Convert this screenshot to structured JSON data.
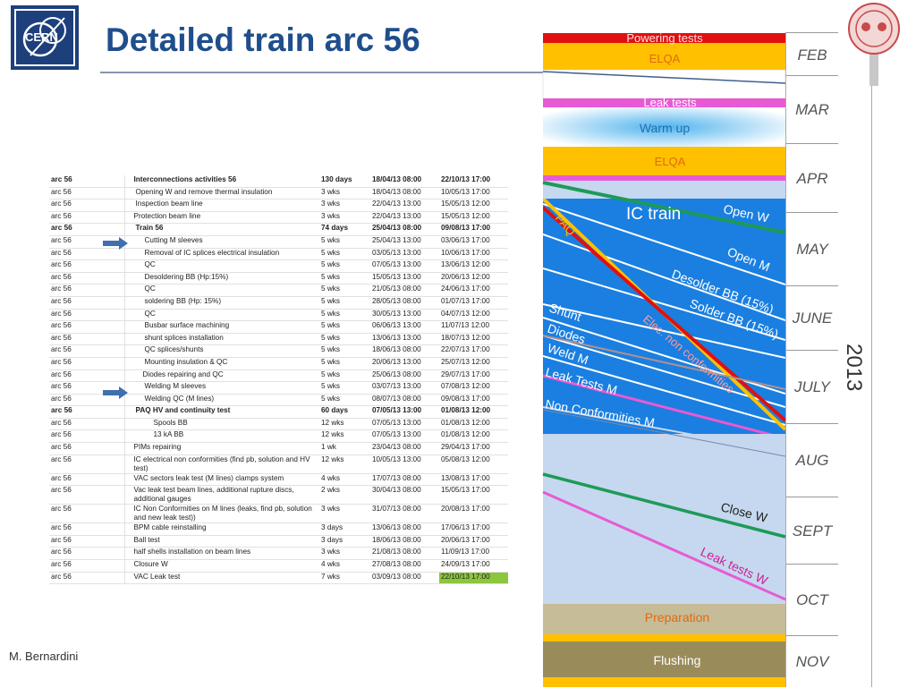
{
  "title": "Detailed train arc 56",
  "author": "M. Bernardini",
  "logo_text": "CERN",
  "year": "2013",
  "months": [
    "FEB",
    "MAR",
    "APR",
    "MAY",
    "JUNE",
    "JULY",
    "AUG",
    "SEPT",
    "OCT",
    "NOV"
  ],
  "bands": {
    "powering": "Powering tests",
    "elqa1": "ELQA",
    "leak": "Leak tests",
    "warm": "Warm up",
    "elqa2": "ELQA",
    "prep": "Preparation",
    "flush": "Flushing"
  },
  "train_labels": {
    "ic_train": "IC train",
    "open_w": "Open W",
    "paq": "PAQ",
    "open_m": "Open M",
    "desolder": "Desolder BB (15%)",
    "solder": "Solder BB (15%)",
    "shunt": "Shunt",
    "diodes": "Diodes",
    "elec": "Elec. non conformities",
    "weld_m": "Weld M",
    "leak_m": "Leak Tests M",
    "nonconf_m": "Non Conformities M",
    "close_w": "Close W",
    "leak_w": "Leak tests W"
  },
  "table": [
    [
      "arc 56",
      "Interconnections activities 56",
      "130 days",
      "18/04/13 08:00",
      "22/10/13 17:00"
    ],
    [
      "arc 56",
      "Opening W and remove thermal insulation",
      "3 wks",
      "18/04/13 08:00",
      "10/05/13 17:00"
    ],
    [
      "arc 56",
      "Inspection beam line",
      "3 wks",
      "22/04/13 13:00",
      "15/05/13 12:00"
    ],
    [
      "arc 56",
      "Protection beam line",
      "3 wks",
      "22/04/13 13:00",
      "15/05/13 12:00"
    ],
    [
      "arc 56",
      "Train 56",
      "74 days",
      "25/04/13 08:00",
      "09/08/13 17:00"
    ],
    [
      "arc 56",
      "Cutting M sleeves",
      "5 wks",
      "25/04/13 13:00",
      "03/06/13 17:00"
    ],
    [
      "arc 56",
      "Removal of IC splices electrical insulation",
      "5 wks",
      "03/05/13 13:00",
      "10/06/13 17:00"
    ],
    [
      "arc 56",
      "QC",
      "5 wks",
      "07/05/13 13:00",
      "13/06/13 12:00"
    ],
    [
      "arc 56",
      "Desoldering BB (Hp:15%)",
      "5 wks",
      "15/05/13 13:00",
      "20/06/13 12:00"
    ],
    [
      "arc 56",
      "QC",
      "5 wks",
      "21/05/13 08:00",
      "24/06/13 17:00"
    ],
    [
      "arc 56",
      "soldering BB (Hp: 15%)",
      "5 wks",
      "28/05/13 08:00",
      "01/07/13 17:00"
    ],
    [
      "arc 56",
      "QC",
      "5 wks",
      "30/05/13 13:00",
      "04/07/13 12:00"
    ],
    [
      "arc 56",
      "Busbar surface machining",
      "5 wks",
      "06/06/13 13:00",
      "11/07/13 12:00"
    ],
    [
      "arc 56",
      "shunt splices installation",
      "5 wks",
      "13/06/13 13:00",
      "18/07/13 12:00"
    ],
    [
      "arc 56",
      "QC splices/shunts",
      "5 wks",
      "18/06/13 08:00",
      "22/07/13 17:00"
    ],
    [
      "arc 56",
      "Mounting insulation & QC",
      "5 wks",
      "20/06/13 13:00",
      "25/07/13 12:00"
    ],
    [
      "arc 56",
      "Diodes repairing and QC",
      "5 wks",
      "25/06/13 08:00",
      "29/07/13 17:00"
    ],
    [
      "arc 56",
      "Welding M sleeves",
      "5 wks",
      "03/07/13 13:00",
      "07/08/13 12:00"
    ],
    [
      "arc 56",
      "Welding QC (M lines)",
      "5 wks",
      "08/07/13 08:00",
      "09/08/13 17:00"
    ],
    [
      "arc 56",
      "PAQ HV and continuity test",
      "60 days",
      "07/05/13 13:00",
      "01/08/13 12:00"
    ],
    [
      "arc 56",
      "Spools BB",
      "12 wks",
      "07/05/13 13:00",
      "01/08/13 12:00"
    ],
    [
      "arc 56",
      "13 kA BB",
      "12 wks",
      "07/05/13 13:00",
      "01/08/13 12:00"
    ],
    [
      "arc 56",
      "PIMs repairing",
      "1 wk",
      "23/04/13 08:00",
      "29/04/13 17:00"
    ],
    [
      "arc 56",
      "IC electrical non conformities (find pb, solution and HV test)",
      "12 wks",
      "10/05/13 13:00",
      "05/08/13 12:00"
    ],
    [
      "arc 56",
      "VAC sectors leak test (M lines) clamps system",
      "4 wks",
      "17/07/13 08:00",
      "13/08/13 17:00"
    ],
    [
      "arc 56",
      "Vac leak test beam lines, additional rupture discs, additional gauges",
      "2 wks",
      "30/04/13 08:00",
      "15/05/13 17:00"
    ],
    [
      "arc 56",
      "IC Non Conformities on M lines (leaks, find pb, solution and new leak test))",
      "3 wks",
      "31/07/13 08:00",
      "20/08/13 17:00"
    ],
    [
      "arc 56",
      "BPM cable reinstalling",
      "3 days",
      "13/06/13 08:00",
      "17/06/13 17:00"
    ],
    [
      "arc 56",
      "Ball test",
      "3 days",
      "18/06/13 08:00",
      "20/06/13 17:00"
    ],
    [
      "arc 56",
      "half shells installation on beam lines",
      "3 wks",
      "21/08/13 08:00",
      "11/09/13 17:00"
    ],
    [
      "arc 56",
      "Closure W",
      "4 wks",
      "27/08/13 08:00",
      "24/09/13 17:00"
    ],
    [
      "arc 56",
      "VAC Leak test",
      "7 wks",
      "03/09/13 08:00",
      "22/10/13 17:00"
    ]
  ],
  "colors": {
    "title": "#1f4e8c",
    "ic_blue": "#1a7fe0",
    "light_blue": "#c5d8ef",
    "orange": "#ffc000",
    "red": "#e01010",
    "magenta": "#e85ad4",
    "green": "#1e9a58",
    "tan": "#c7bc98",
    "olive": "#9a8c5a",
    "hl_green": "#8cc63e"
  }
}
